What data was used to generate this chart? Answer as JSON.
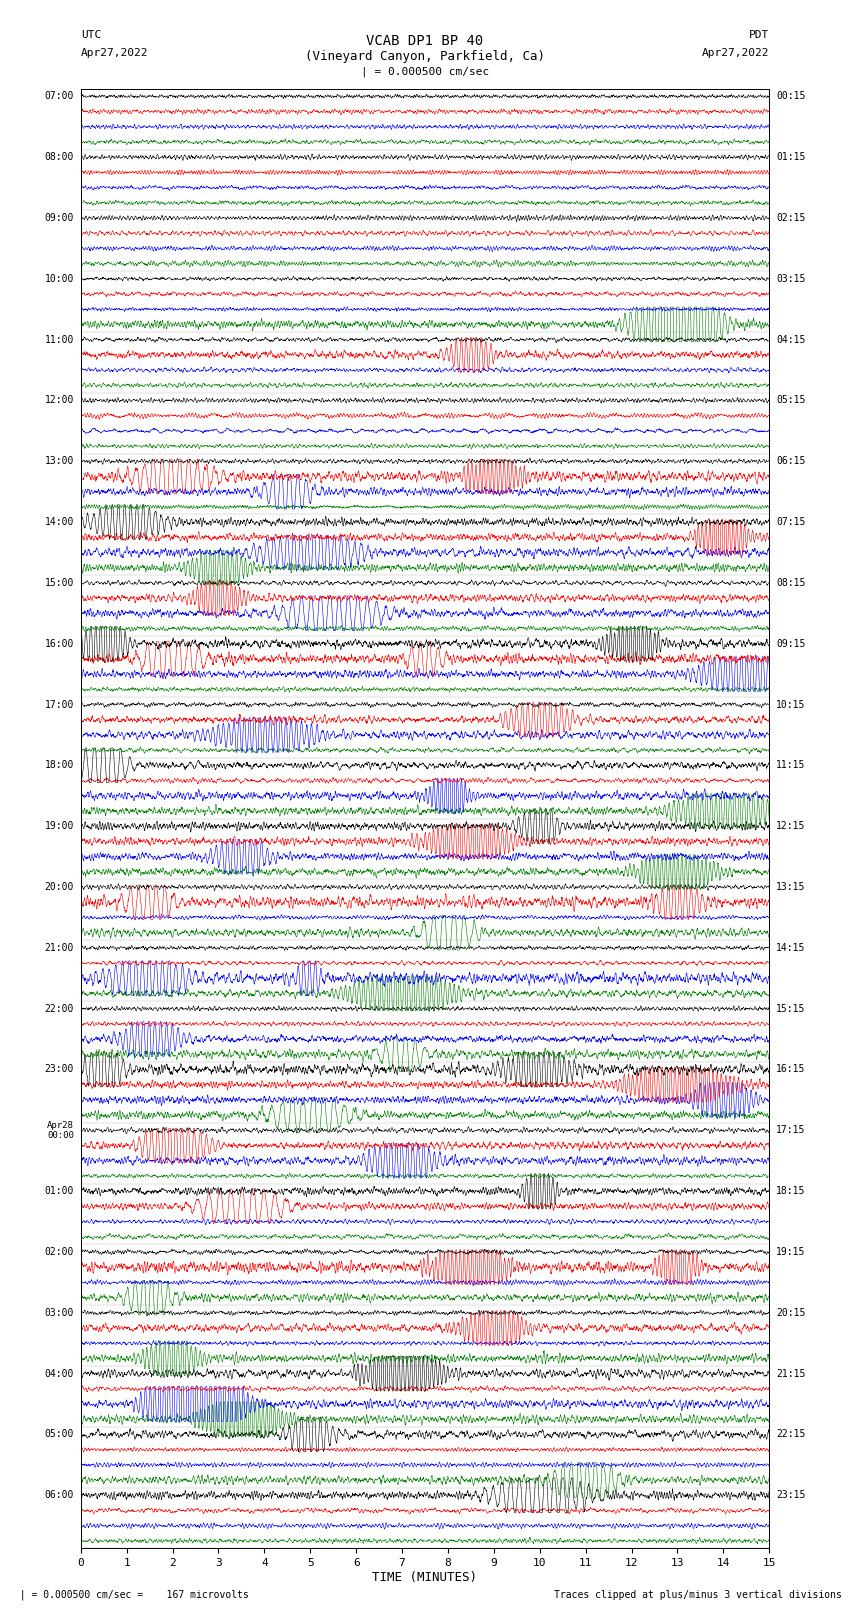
{
  "title_line1": "VCAB DP1 BP 40",
  "title_line2": "(Vineyard Canyon, Parkfield, Ca)",
  "scale_label": "| = 0.000500 cm/sec",
  "left_header_top": "UTC",
  "left_header_date": "Apr27,2022",
  "right_header_top": "PDT",
  "right_header_date": "Apr27,2022",
  "footer_scale": "  | = 0.000500 cm/sec =    167 microvolts",
  "footer_clip": "Traces clipped at plus/minus 3 vertical divisions",
  "xlabel": "TIME (MINUTES)",
  "colors": [
    "black",
    "red",
    "blue",
    "green"
  ],
  "utc_labels": [
    "07:00",
    "08:00",
    "09:00",
    "10:00",
    "11:00",
    "12:00",
    "13:00",
    "14:00",
    "15:00",
    "16:00",
    "17:00",
    "18:00",
    "19:00",
    "20:00",
    "21:00",
    "22:00",
    "23:00",
    "Apr28\n00:00",
    "01:00",
    "02:00",
    "03:00",
    "04:00",
    "05:00",
    "06:00"
  ],
  "pdt_labels": [
    "00:15",
    "01:15",
    "02:15",
    "03:15",
    "04:15",
    "05:15",
    "06:15",
    "07:15",
    "08:15",
    "09:15",
    "10:15",
    "11:15",
    "12:15",
    "13:15",
    "14:15",
    "15:15",
    "16:15",
    "17:15",
    "18:15",
    "19:15",
    "20:15",
    "21:15",
    "22:15",
    "23:15"
  ],
  "n_hour_blocks": 24,
  "n_colors": 4,
  "x_min": 0,
  "x_max": 15,
  "x_ticks": [
    0,
    1,
    2,
    3,
    4,
    5,
    6,
    7,
    8,
    9,
    10,
    11,
    12,
    13,
    14,
    15
  ],
  "background_color": "white",
  "trace_amplitude": 0.38,
  "noise_seed": 42
}
